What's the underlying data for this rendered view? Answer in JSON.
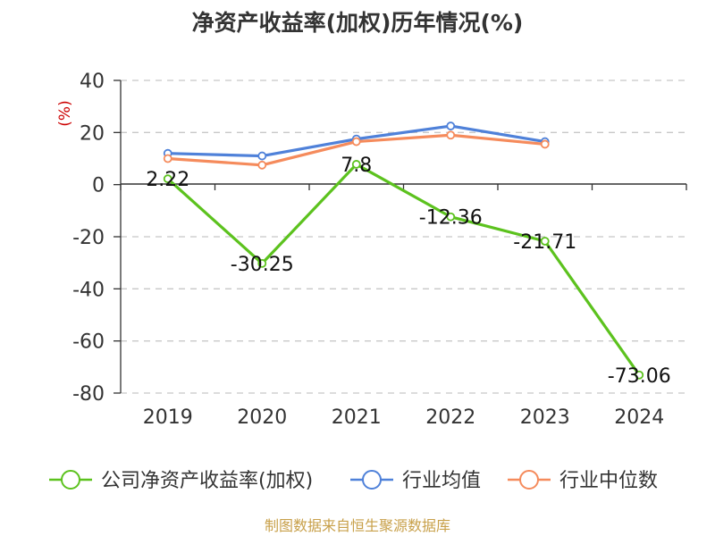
{
  "title": "净资产收益率(加权)历年情况(%)",
  "source": "制图数据来自恒生聚源数据库",
  "chart_data": {
    "type": "line",
    "title": "净资产收益率(加权)历年情况(%)",
    "categories": [
      "2019",
      "2020",
      "2021",
      "2022",
      "2023",
      "2024"
    ],
    "ylabel": "(%)",
    "ylim": [
      -80,
      40
    ],
    "yticks": [
      40,
      20,
      0,
      -20,
      -40,
      -60,
      -80
    ],
    "grid": true,
    "legend_position": "bottom",
    "series": [
      {
        "name": "公司净资产收益率(加权)",
        "color": "#5cc21e",
        "values": [
          2.22,
          -30.25,
          7.8,
          -12.36,
          -21.71,
          -73.06
        ],
        "labels": [
          "2.22",
          "-30.25",
          "7.8",
          "-12.36",
          "-21.71",
          "-73.06"
        ]
      },
      {
        "name": "行业均值",
        "color": "#4f81d9",
        "values": [
          12,
          11,
          17.5,
          22.5,
          16.5,
          null
        ]
      },
      {
        "name": "行业中位数",
        "color": "#f58b5c",
        "values": [
          10,
          7.5,
          16.5,
          19,
          15.5,
          null
        ]
      }
    ]
  }
}
